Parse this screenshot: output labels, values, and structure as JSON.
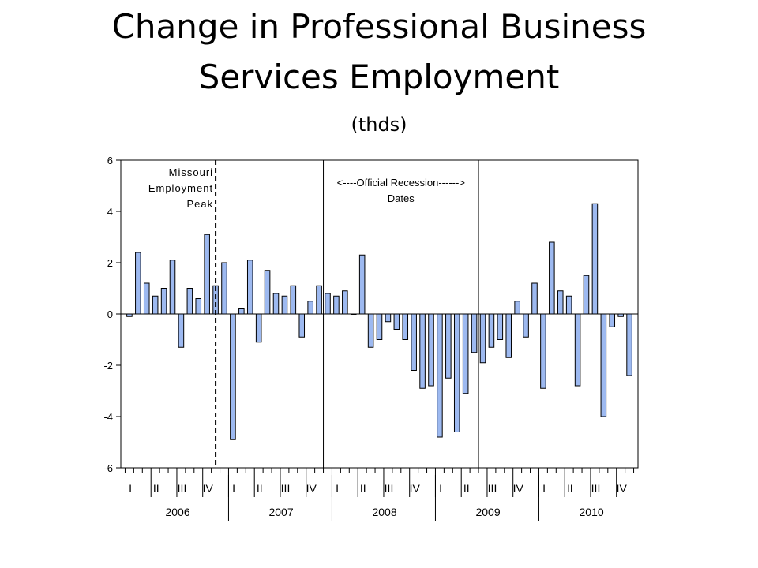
{
  "slide": {
    "title_line1": "Change in Professional Business",
    "title_line2": "Services Employment",
    "subtitle": "(thds)"
  },
  "chart_data": {
    "type": "bar",
    "title": "Change in Professional Business Services Employment",
    "subtitle": "(thds)",
    "xlabel": "",
    "ylabel": "",
    "ylim": [
      -6,
      6
    ],
    "yticks": [
      6,
      4,
      2,
      0,
      -2,
      -4,
      -6
    ],
    "quarter_labels": [
      "I",
      "II",
      "III",
      "IV"
    ],
    "years": [
      "2006",
      "2007",
      "2008",
      "2009",
      "2010"
    ],
    "bar_color": "#9db9f0",
    "annotations": {
      "peak_line1": "Missouri",
      "peak_line2": "Employment",
      "peak_line3": "Peak",
      "recession_line1": "<----Official Recession------>",
      "recession_line2": "Dates"
    },
    "reference_lines": {
      "peak_after_month_index": 10.5,
      "recession_start_month_index": 23,
      "recession_end_month_index": 41
    },
    "series": [
      {
        "values": [
          -0.1,
          2.4,
          1.2,
          0.7,
          1.0,
          2.1,
          -1.3,
          1.0,
          0.6,
          3.1,
          1.1,
          2.0,
          -4.9,
          0.2,
          2.1,
          -1.1,
          1.7,
          0.8,
          0.7,
          1.1,
          -0.9,
          0.5,
          1.1,
          0.8,
          0.7,
          0.9,
          0.0,
          2.3,
          -1.3,
          -1.0,
          -0.3,
          -0.6,
          -1.0,
          -2.2,
          -2.9,
          -2.8,
          -4.8,
          -2.5,
          -4.6,
          -3.1,
          -1.5,
          -1.9,
          -1.3,
          -1.0,
          -1.7,
          0.5,
          -0.9,
          1.2,
          -2.9,
          2.8,
          0.9,
          0.7,
          -2.8,
          1.5,
          4.3,
          -4.0,
          -0.5,
          -0.1,
          -2.4
        ]
      }
    ]
  }
}
